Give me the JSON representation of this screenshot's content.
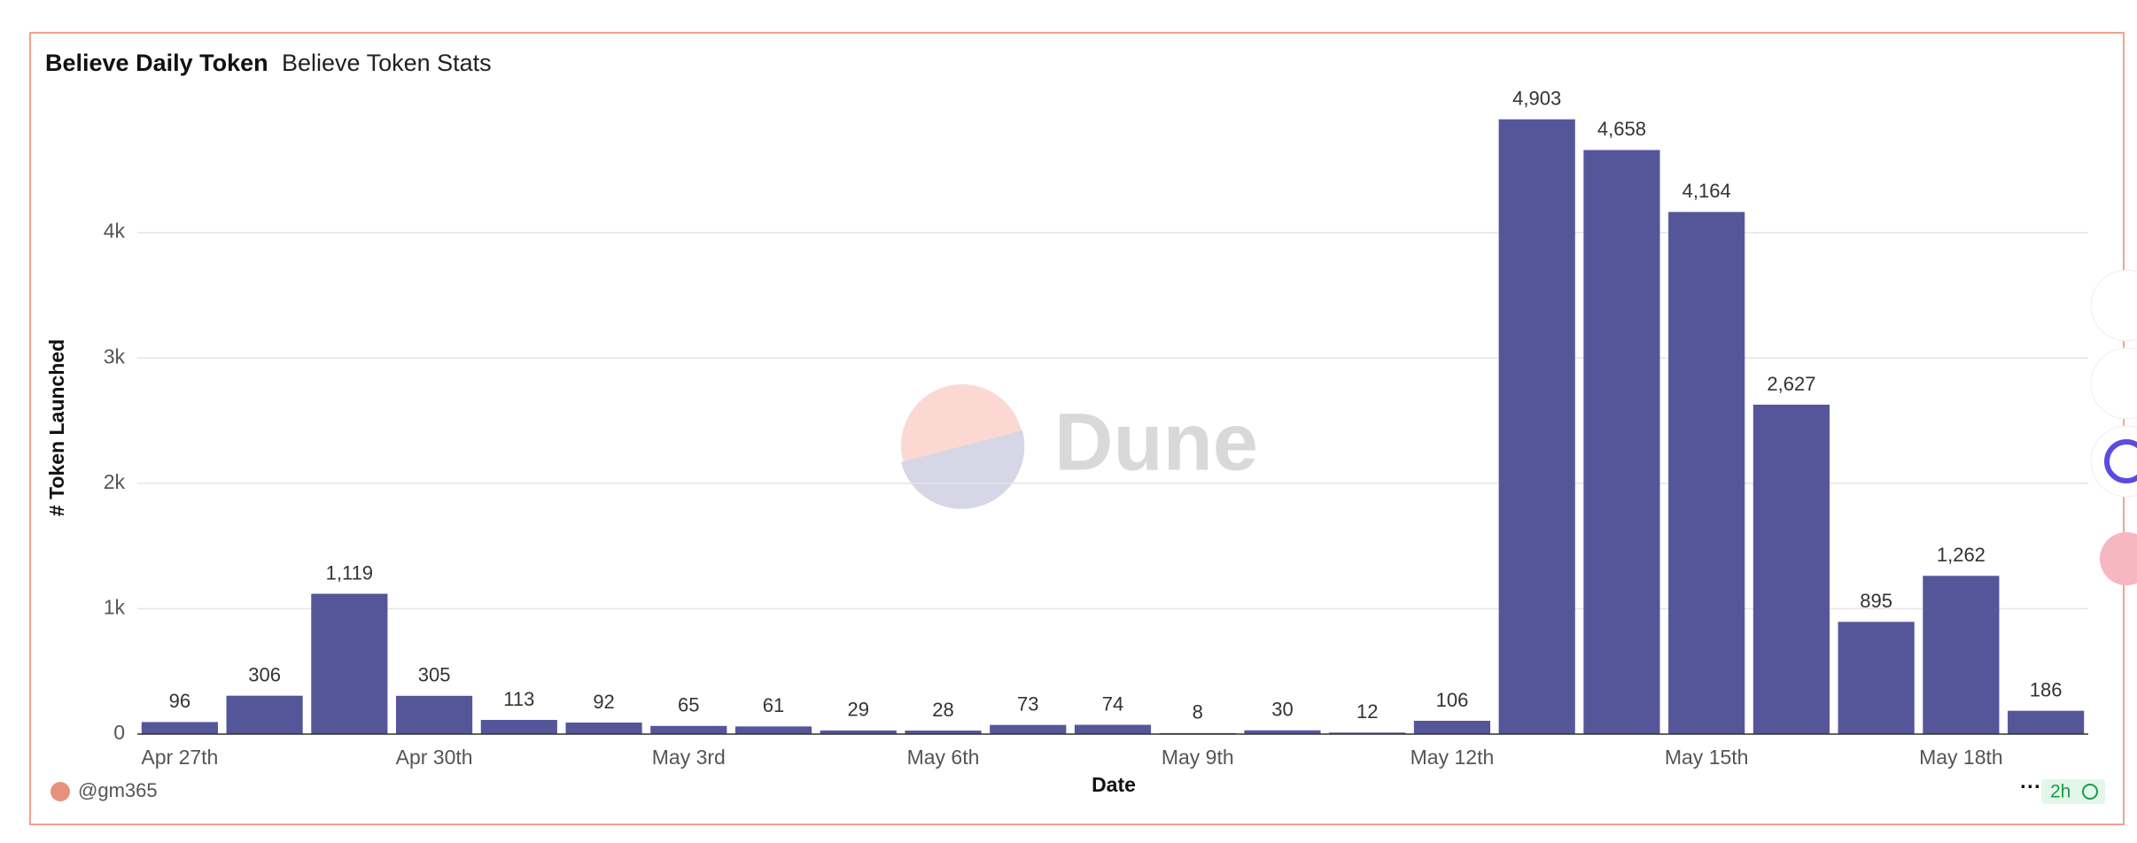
{
  "chart_data": {
    "type": "bar",
    "title": "Believe Daily Token",
    "subtitle": "Believe Token Stats",
    "x_label": "Date",
    "y_label": "# Token Launched",
    "watermark": "Dune",
    "author": "@gm365",
    "updated": "2h",
    "categories": [
      "Apr 27th",
      null,
      null,
      "Apr 30th",
      null,
      null,
      "May 3rd",
      null,
      null,
      "May 6th",
      null,
      null,
      "May 9th",
      null,
      null,
      "May 12th",
      null,
      null,
      "May 15th",
      null,
      null,
      "May 18th",
      null
    ],
    "values": [
      96,
      306,
      1119,
      305,
      113,
      92,
      65,
      61,
      29,
      28,
      73,
      74,
      8,
      30,
      12,
      106,
      4903,
      4658,
      4164,
      2627,
      895,
      1262,
      186
    ],
    "value_labels": [
      "96",
      "306",
      "1,119",
      "305",
      "113",
      "92",
      "65",
      "61",
      "29",
      "28",
      "73",
      "74",
      "8",
      "30",
      "12",
      "106",
      "4,903",
      "4,658",
      "4,164",
      "2,627",
      "895",
      "1,262",
      "186"
    ],
    "color": "#55559a",
    "ylim": [
      0,
      5000
    ],
    "yticks": [
      0,
      {
        "value": 1000,
        "label": "1k"
      },
      {
        "value": 2000,
        "label": "2k"
      },
      {
        "value": 3000,
        "label": "3k"
      },
      {
        "value": 4000,
        "label": "4k"
      }
    ],
    "grid": true
  }
}
